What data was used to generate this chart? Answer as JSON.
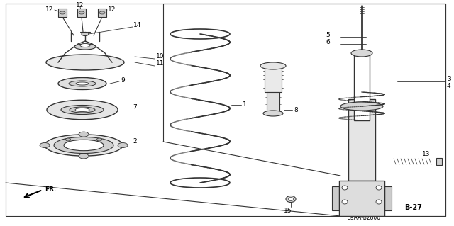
{
  "background_color": "#ffffff",
  "line_color": "#333333",
  "text_color": "#000000",
  "diagram_code": "S9AA-B2800",
  "page_ref": "B-27",
  "fig_width": 6.4,
  "fig_height": 3.19,
  "dpi": 100
}
